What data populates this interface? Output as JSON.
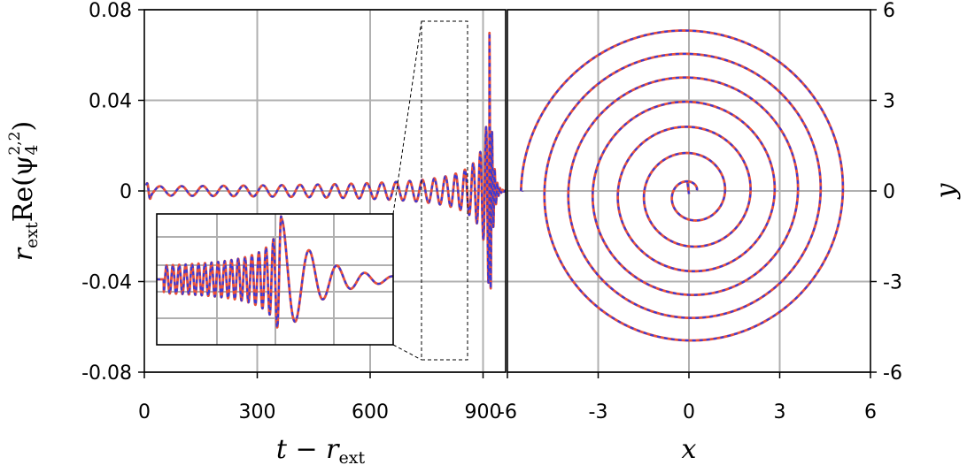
{
  "chart_data": [
    {
      "type": "line",
      "xlabel": "t − r",
      "xlabel_sub": "ext",
      "ylabel": "r",
      "ylabel_sub": "ext",
      "ylabel_rest": "Re(ψ",
      "ylabel_psi_sub": "4",
      "ylabel_psi_sup": "2,2",
      "ylabel_close": ")",
      "xlim": [
        0,
        960
      ],
      "ylim": [
        -0.08,
        0.08
      ],
      "xticks": [
        "0",
        "300",
        "600",
        "900"
      ],
      "yticks": [
        "0.08",
        "0.04",
        "0",
        "-0.04",
        "-0.08"
      ],
      "grid": true,
      "series": [
        {
          "color": "#e8503a",
          "style": "solid"
        },
        {
          "color": "#3a3ad8",
          "style": "dashed"
        }
      ],
      "waveform": {
        "merger_time": 917,
        "peak_amplitude": 0.072,
        "min_amplitude": -0.067,
        "early_amplitude": 0.0015,
        "ringdown_end": 960
      },
      "inset": {
        "xrange": [
          850,
          985
        ],
        "yrange": [
          -0.075,
          0.075
        ],
        "grid": true
      }
    },
    {
      "type": "line",
      "xlabel": "x",
      "ylabel": "y",
      "xlim": [
        -6,
        6
      ],
      "ylim": [
        -6,
        6
      ],
      "xticks": [
        "-6",
        "-3",
        "0",
        "3",
        "6"
      ],
      "yticks": [
        "6",
        "3",
        "0",
        "-3",
        "-6"
      ],
      "grid": true,
      "series": [
        {
          "color": "#e8503a",
          "style": "solid"
        },
        {
          "color": "#3a3ad8",
          "style": "dashed"
        }
      ],
      "trajectory": {
        "start": [
          -5.5,
          0
        ],
        "outer_radius": 5.5,
        "inner_radius": 0.2,
        "turns": 6.4,
        "end": [
          -0.05,
          0.3
        ]
      }
    }
  ]
}
